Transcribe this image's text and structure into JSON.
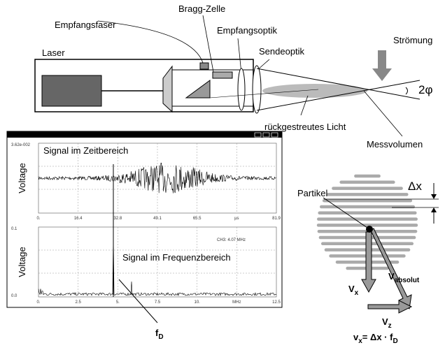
{
  "diagram": {
    "labels": {
      "bragg": "Bragg-Zelle",
      "fiber": "Empfangsfaser",
      "receive_optics": "Empfangsoptik",
      "send_optics": "Sendeoptik",
      "laser": "Laser",
      "flow": "Strömung",
      "angle": "2φ",
      "backscatter": "rückgestreutes Licht",
      "volume": "Messvolumen",
      "particle": "Partikel",
      "dx": "Δx",
      "v_absolut": {
        "main": "V",
        "sub": "absolut"
      },
      "v_x": {
        "main": "V",
        "sub": "x"
      },
      "v_z": {
        "main": "V",
        "sub": "z"
      },
      "formula": {
        "a": "v",
        "a_sub": "x",
        "b": "= Δx · f",
        "b_sub": "D"
      },
      "f_d": {
        "main": "f",
        "sub": "D"
      }
    },
    "plot_time": {
      "title": "Signal im Zeitbereich",
      "ylabel": "Voltage",
      "ymax": "3.62e-002",
      "xticks": [
        "0.",
        "16.4",
        "32.8",
        "49.1",
        "65.5",
        "µs",
        "81.9"
      ]
    },
    "plot_freq": {
      "title": "Signal im Frequenzbereich",
      "ylabel": "Voltage",
      "ymax": "0.1",
      "ymin": "0.0",
      "note": "CH3: 4.07 MHz",
      "xticks": [
        "0.",
        "2.5",
        "5.",
        "7.5",
        "10.",
        "MHz",
        "12.5"
      ]
    }
  }
}
